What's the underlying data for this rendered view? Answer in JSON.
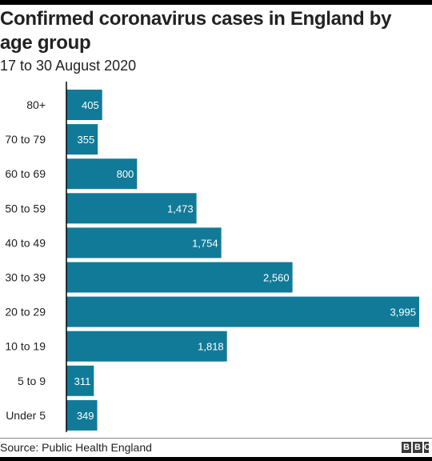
{
  "title": "Confirmed coronavirus cases in England by age group",
  "subtitle": "17 to 30 August 2020",
  "source": "Source: Public Health England",
  "logo": [
    "B",
    "B",
    "C"
  ],
  "colors": {
    "bar": "#117a98",
    "label": "#ffffff",
    "text": "#222222",
    "axis": "#000000"
  },
  "chart_data": {
    "type": "bar",
    "orientation": "horizontal",
    "categories": [
      "80+",
      "70 to 79",
      "60 to 69",
      "50 to 59",
      "40 to 49",
      "30 to 39",
      "20 to 29",
      "10 to 19",
      "5 to 9",
      "Under 5"
    ],
    "values": [
      405,
      355,
      800,
      1473,
      1754,
      2560,
      3995,
      1818,
      311,
      349
    ],
    "value_labels": [
      "405",
      "355",
      "800",
      "1,473",
      "1,754",
      "2,560",
      "3,995",
      "1,818",
      "311",
      "349"
    ],
    "xlim": [
      0,
      3995
    ],
    "grid": false,
    "legend": "none"
  }
}
